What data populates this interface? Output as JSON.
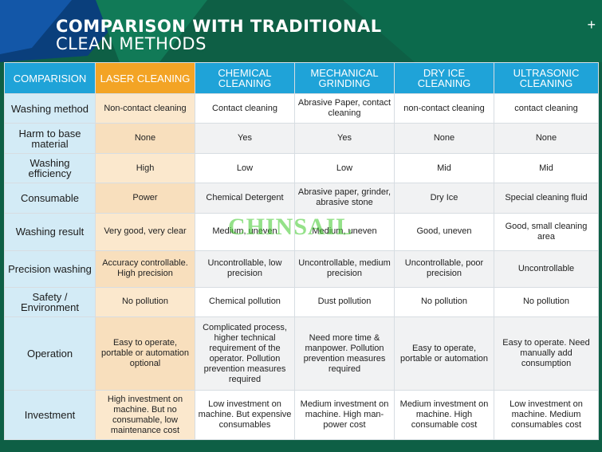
{
  "header": {
    "title_line1": "COMPARISON WITH TRADITIONAL",
    "title_line2": "CLEAN METHODS",
    "plus_symbol": "+"
  },
  "table": {
    "columns": [
      "COMPARISION",
      "LASER CLEANING",
      "CHEMICAL CLEANING",
      "MECHANICAL GRINDING",
      "DRY ICE CLEANING",
      "ULTRASONIC CLEANING"
    ],
    "rows": [
      {
        "label": "Washing method",
        "cells": [
          "Non-contact cleaning",
          "Contact cleaning",
          "Abrasive Paper, contact cleaning",
          "non-contact cleaning",
          "contact cleaning"
        ]
      },
      {
        "label": "Harm to base material",
        "cells": [
          "None",
          "Yes",
          "Yes",
          "None",
          "None"
        ]
      },
      {
        "label": "Washing efficiency",
        "cells": [
          "High",
          "Low",
          "Low",
          "Mid",
          "Mid"
        ]
      },
      {
        "label": "Consumable",
        "cells": [
          "Power",
          "Chemical Detergent",
          "Abrasive paper, grinder, abrasive stone",
          "Dry Ice",
          "Special cleaning fluid"
        ]
      },
      {
        "label": "Washing result",
        "cells": [
          "Very good, very clear",
          "Medium, uneven",
          "Medium, uneven",
          "Good, uneven",
          "Good, small cleaning area"
        ]
      },
      {
        "label": "Precision washing",
        "cells": [
          "Accuracy controllable. High precision",
          "Uncontrollable, low precision",
          "Uncontrollable, medium precision",
          "Uncontrollable, poor precision",
          "Uncontrollable"
        ]
      },
      {
        "label": "Safety / Environment",
        "cells": [
          "No pollution",
          "Chemical pollution",
          "Dust pollution",
          "No pollution",
          "No pollution"
        ]
      },
      {
        "label": "Operation",
        "cells": [
          "Easy to operate, portable or automation optional",
          "Complicated process, higher technical requirement of the operator. Pollution prevention measures required",
          "Need more time & manpower. Pollution prevention measures required",
          "Easy to operate, portable or automation",
          "Easy to operate. Need manually add consumption"
        ]
      },
      {
        "label": "Investment",
        "cells": [
          "High investment on machine. But no consumable, low maintenance cost",
          "Low investment on machine. But expensive consumables",
          "Medium investment on machine. High man-power cost",
          "Medium investment on machine. High consumable cost",
          "Low investment on machine. Medium consumables cost"
        ]
      }
    ]
  },
  "watermark": "CHINSAIL",
  "colors": {
    "background": "#0e5f45",
    "header_blue": "#1fa3d8",
    "header_orange": "#f3a425",
    "label_bg": "#d3ebf6",
    "laser_bg": "#fbe8cd"
  }
}
